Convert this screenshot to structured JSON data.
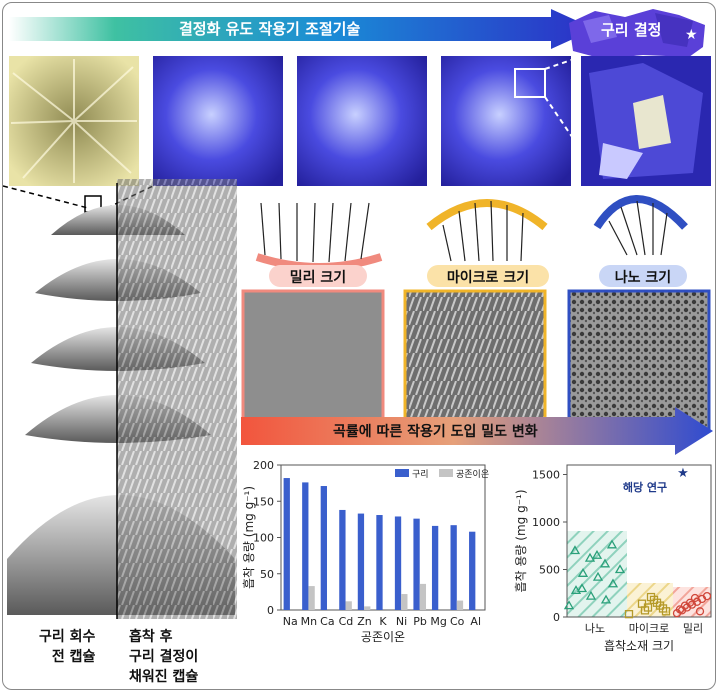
{
  "banner": {
    "title": "결정화 유도 작용기 조절기술",
    "crystal_label": "구리 결정",
    "colors": {
      "start": "#29b59a",
      "mid": "#1a8bd6",
      "end": "#2c2fc7"
    }
  },
  "sizes": {
    "milli": "밀리 크기",
    "micro": "마이크로 크기",
    "nano": "나노 크기"
  },
  "density_arrow": {
    "label": "곡률에 따른 작용기 도입 밀도 변화"
  },
  "capsule_labels": {
    "left_line1": "구리 회수",
    "left_line2": "전 캡슐",
    "right_line1": "흡착 후",
    "right_line2": "구리 결정이",
    "right_line3": "채워진 캡슐"
  },
  "chart_data": [
    {
      "type": "bar",
      "categories": [
        "Na",
        "Mn",
        "Ca",
        "Cd",
        "Zn",
        "K",
        "Ni",
        "Pb",
        "Mg",
        "Co",
        "Al"
      ],
      "series": [
        {
          "name": "구리",
          "color": "#3a5fcd",
          "values": [
            182,
            176,
            171,
            138,
            133,
            131,
            129,
            126,
            116,
            117,
            108
          ]
        },
        {
          "name": "공존이온",
          "color": "#c4c4c4",
          "values": [
            0,
            33,
            0,
            12,
            5,
            0,
            22,
            36,
            0,
            13,
            0
          ]
        }
      ],
      "xlabel": "공존이온",
      "ylabel": "흡착 용량 (mg g⁻¹)",
      "ylim": [
        0,
        200
      ],
      "yticks": [
        "0",
        "50",
        "100",
        "150",
        "200"
      ],
      "legend": "top-right"
    },
    {
      "type": "scatter",
      "categories": [
        "나노",
        "마이크로",
        "밀리"
      ],
      "xlabel": "흡착소재 크기",
      "ylabel": "흡착 용량 (mg g⁻¹)",
      "ylim": [
        0,
        1600
      ],
      "yticks": [
        "0",
        "500",
        "1000",
        "1500"
      ],
      "annotation": "해당 연구",
      "series": [
        {
          "name": "나노",
          "marker": "triangle",
          "color": "#2aa07a",
          "y": [
            120,
            180,
            220,
            280,
            350,
            420,
            460,
            500,
            560,
            620,
            700,
            760,
            650,
            300
          ]
        },
        {
          "name": "마이크로",
          "marker": "square",
          "color": "#b59a2a",
          "y": [
            30,
            60,
            90,
            120,
            150,
            180,
            210,
            100,
            70,
            140
          ]
        },
        {
          "name": "밀리",
          "marker": "circle",
          "color": "#d0473a",
          "y": [
            40,
            70,
            100,
            130,
            160,
            190,
            220,
            80,
            120,
            150,
            200,
            60
          ]
        }
      ]
    }
  ]
}
